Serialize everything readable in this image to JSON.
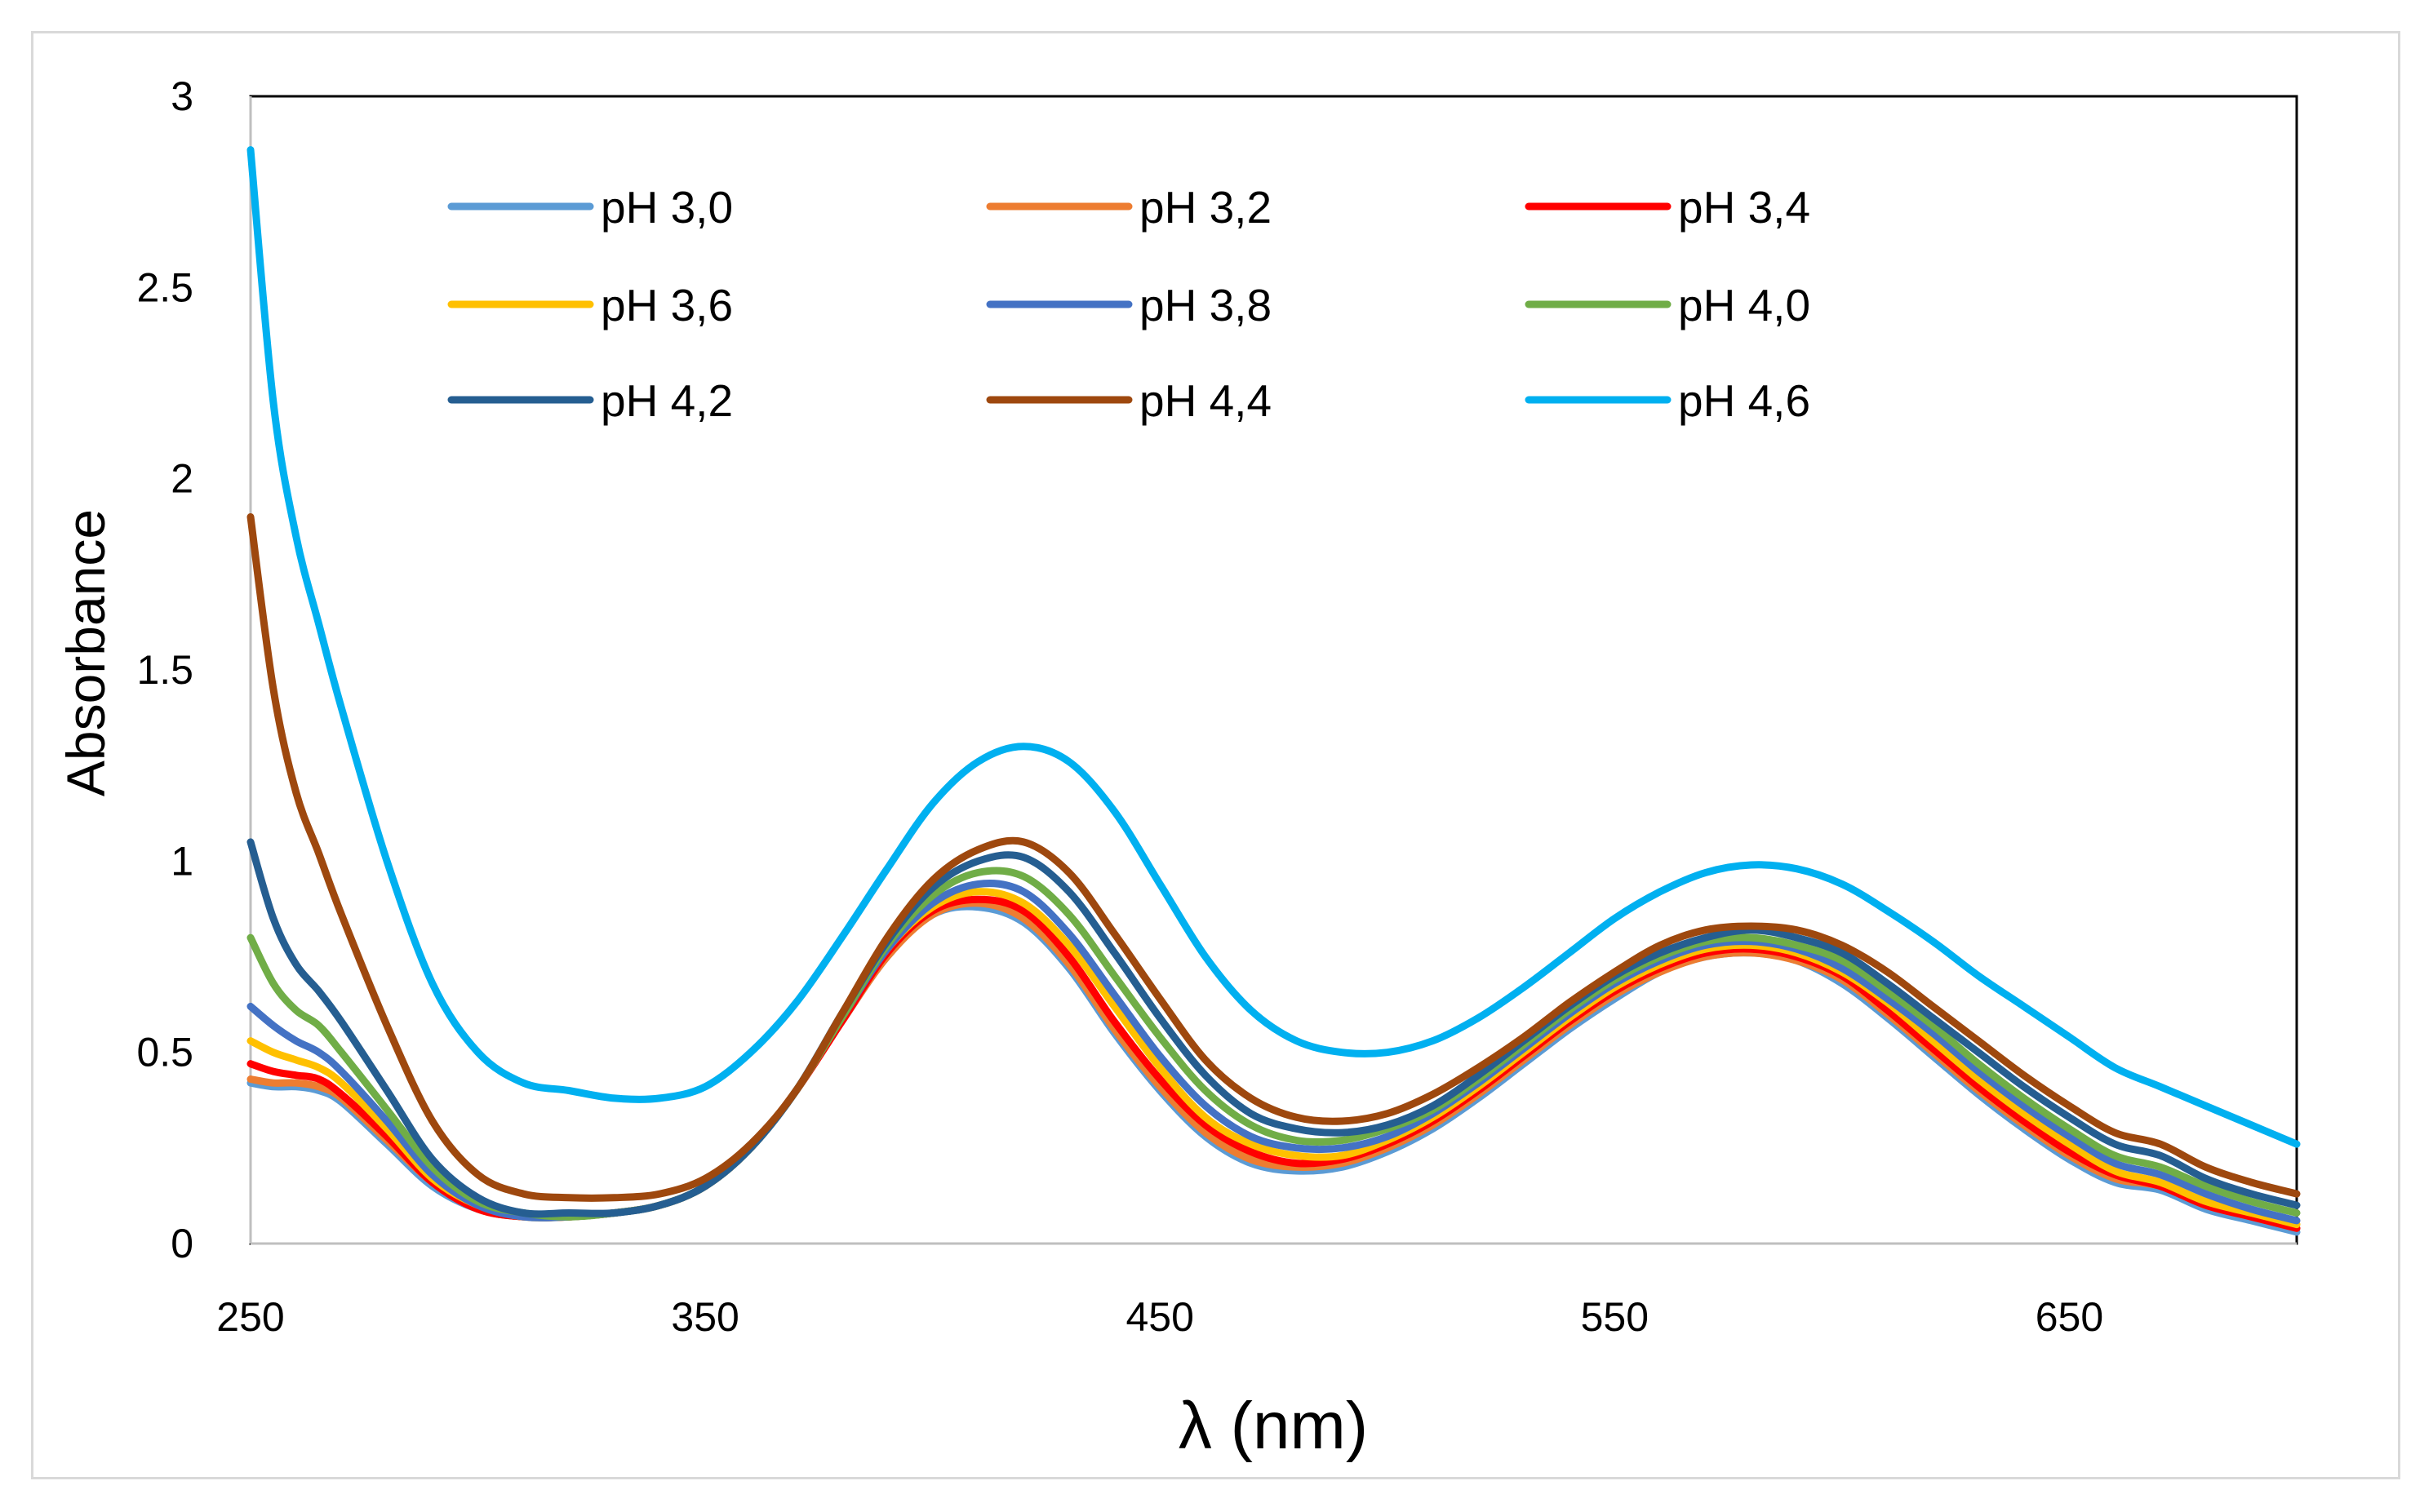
{
  "chart_data": {
    "type": "line",
    "title": "",
    "xlabel": "λ (nm)",
    "ylabel": "Absorbance",
    "xlim": [
      250,
      700
    ],
    "ylim": [
      0,
      3
    ],
    "x_ticks": [
      250,
      350,
      450,
      550,
      650
    ],
    "y_ticks": [
      0,
      0.5,
      1,
      1.5,
      2,
      2.5,
      3
    ],
    "y_tick_labels": [
      "0",
      "0.5",
      "1",
      "1.5",
      "2",
      "2.5",
      "3"
    ],
    "grid": false,
    "legend_position": "top, inside plot, 3 columns",
    "x": [
      250,
      255,
      260,
      265,
      270,
      280,
      290,
      300,
      310,
      320,
      330,
      340,
      350,
      360,
      370,
      380,
      390,
      400,
      410,
      420,
      430,
      440,
      450,
      460,
      470,
      480,
      490,
      500,
      510,
      520,
      530,
      540,
      550,
      560,
      570,
      580,
      590,
      600,
      610,
      620,
      630,
      640,
      650,
      660,
      670,
      680,
      690,
      700
    ],
    "series": [
      {
        "name": "pH 3,0",
        "color": "#5B9BD5",
        "values": [
          0.42,
          0.41,
          0.41,
          0.4,
          0.37,
          0.26,
          0.15,
          0.09,
          0.07,
          0.07,
          0.08,
          0.1,
          0.15,
          0.25,
          0.4,
          0.58,
          0.75,
          0.86,
          0.88,
          0.84,
          0.72,
          0.55,
          0.4,
          0.28,
          0.21,
          0.19,
          0.2,
          0.24,
          0.3,
          0.38,
          0.47,
          0.56,
          0.64,
          0.71,
          0.75,
          0.76,
          0.74,
          0.68,
          0.59,
          0.49,
          0.39,
          0.3,
          0.22,
          0.16,
          0.14,
          0.09,
          0.06,
          0.03
        ]
      },
      {
        "name": "pH 3,2",
        "color": "#ED7D31",
        "values": [
          0.43,
          0.42,
          0.42,
          0.41,
          0.38,
          0.27,
          0.16,
          0.09,
          0.07,
          0.07,
          0.08,
          0.1,
          0.15,
          0.25,
          0.4,
          0.58,
          0.75,
          0.86,
          0.89,
          0.85,
          0.73,
          0.56,
          0.41,
          0.29,
          0.22,
          0.2,
          0.21,
          0.25,
          0.31,
          0.39,
          0.48,
          0.57,
          0.65,
          0.71,
          0.75,
          0.76,
          0.74,
          0.69,
          0.6,
          0.5,
          0.4,
          0.31,
          0.23,
          0.17,
          0.15,
          0.1,
          0.07,
          0.04
        ]
      },
      {
        "name": "pH 3,4",
        "color": "#FF0000",
        "values": [
          0.47,
          0.45,
          0.44,
          0.43,
          0.39,
          0.28,
          0.16,
          0.09,
          0.07,
          0.07,
          0.08,
          0.1,
          0.15,
          0.25,
          0.4,
          0.58,
          0.76,
          0.87,
          0.9,
          0.87,
          0.75,
          0.58,
          0.43,
          0.31,
          0.24,
          0.21,
          0.22,
          0.26,
          0.32,
          0.4,
          0.49,
          0.58,
          0.66,
          0.72,
          0.76,
          0.77,
          0.75,
          0.7,
          0.61,
          0.51,
          0.41,
          0.32,
          0.24,
          0.18,
          0.15,
          0.1,
          0.07,
          0.04
        ]
      },
      {
        "name": "pH 3,6",
        "color": "#FFC000",
        "values": [
          0.53,
          0.5,
          0.48,
          0.46,
          0.42,
          0.3,
          0.17,
          0.1,
          0.07,
          0.07,
          0.08,
          0.1,
          0.15,
          0.25,
          0.4,
          0.59,
          0.77,
          0.88,
          0.92,
          0.89,
          0.78,
          0.62,
          0.46,
          0.33,
          0.26,
          0.23,
          0.23,
          0.27,
          0.33,
          0.41,
          0.5,
          0.59,
          0.67,
          0.73,
          0.77,
          0.78,
          0.76,
          0.71,
          0.63,
          0.53,
          0.43,
          0.34,
          0.26,
          0.19,
          0.16,
          0.11,
          0.08,
          0.05
        ]
      },
      {
        "name": "pH 3,8",
        "color": "#4472C4",
        "values": [
          0.62,
          0.57,
          0.53,
          0.5,
          0.45,
          0.32,
          0.18,
          0.1,
          0.07,
          0.07,
          0.08,
          0.1,
          0.15,
          0.25,
          0.4,
          0.59,
          0.77,
          0.89,
          0.94,
          0.92,
          0.81,
          0.65,
          0.49,
          0.36,
          0.28,
          0.25,
          0.25,
          0.28,
          0.34,
          0.42,
          0.51,
          0.6,
          0.68,
          0.74,
          0.78,
          0.79,
          0.77,
          0.72,
          0.64,
          0.55,
          0.45,
          0.36,
          0.28,
          0.21,
          0.18,
          0.13,
          0.09,
          0.06
        ]
      },
      {
        "name": "pH 4,0",
        "color": "#70AD47",
        "values": [
          0.8,
          0.68,
          0.61,
          0.57,
          0.5,
          0.35,
          0.2,
          0.11,
          0.08,
          0.07,
          0.08,
          0.1,
          0.15,
          0.25,
          0.4,
          0.59,
          0.78,
          0.91,
          0.97,
          0.96,
          0.86,
          0.7,
          0.54,
          0.4,
          0.31,
          0.27,
          0.27,
          0.3,
          0.35,
          0.43,
          0.52,
          0.61,
          0.69,
          0.75,
          0.79,
          0.8,
          0.78,
          0.74,
          0.66,
          0.57,
          0.47,
          0.38,
          0.3,
          0.23,
          0.2,
          0.15,
          0.11,
          0.08
        ]
      },
      {
        "name": "pH 4,2",
        "color": "#255E91",
        "values": [
          1.05,
          0.85,
          0.73,
          0.66,
          0.58,
          0.4,
          0.22,
          0.12,
          0.08,
          0.08,
          0.08,
          0.1,
          0.15,
          0.25,
          0.4,
          0.6,
          0.79,
          0.93,
          1.0,
          1.01,
          0.92,
          0.76,
          0.59,
          0.44,
          0.34,
          0.3,
          0.29,
          0.31,
          0.36,
          0.44,
          0.53,
          0.62,
          0.7,
          0.76,
          0.8,
          0.82,
          0.8,
          0.76,
          0.68,
          0.59,
          0.5,
          0.41,
          0.33,
          0.26,
          0.23,
          0.17,
          0.13,
          0.1
        ]
      },
      {
        "name": "pH 4,4",
        "color": "#9E480E",
        "values": [
          1.9,
          1.45,
          1.18,
          1.02,
          0.86,
          0.57,
          0.32,
          0.18,
          0.13,
          0.12,
          0.12,
          0.13,
          0.17,
          0.26,
          0.4,
          0.6,
          0.8,
          0.95,
          1.03,
          1.05,
          0.97,
          0.81,
          0.64,
          0.48,
          0.38,
          0.33,
          0.32,
          0.34,
          0.39,
          0.46,
          0.54,
          0.63,
          0.71,
          0.78,
          0.82,
          0.83,
          0.82,
          0.78,
          0.71,
          0.62,
          0.53,
          0.44,
          0.36,
          0.29,
          0.26,
          0.2,
          0.16,
          0.13
        ]
      },
      {
        "name": "pH 4,6",
        "color": "#00B0F0",
        "values": [
          2.86,
          2.2,
          1.85,
          1.62,
          1.4,
          1.0,
          0.68,
          0.5,
          0.42,
          0.4,
          0.38,
          0.38,
          0.41,
          0.5,
          0.63,
          0.8,
          0.98,
          1.15,
          1.26,
          1.3,
          1.26,
          1.13,
          0.94,
          0.75,
          0.61,
          0.53,
          0.5,
          0.5,
          0.53,
          0.59,
          0.67,
          0.76,
          0.85,
          0.92,
          0.97,
          0.99,
          0.98,
          0.94,
          0.87,
          0.79,
          0.7,
          0.62,
          0.54,
          0.46,
          0.41,
          0.36,
          0.31,
          0.26
        ]
      }
    ]
  }
}
